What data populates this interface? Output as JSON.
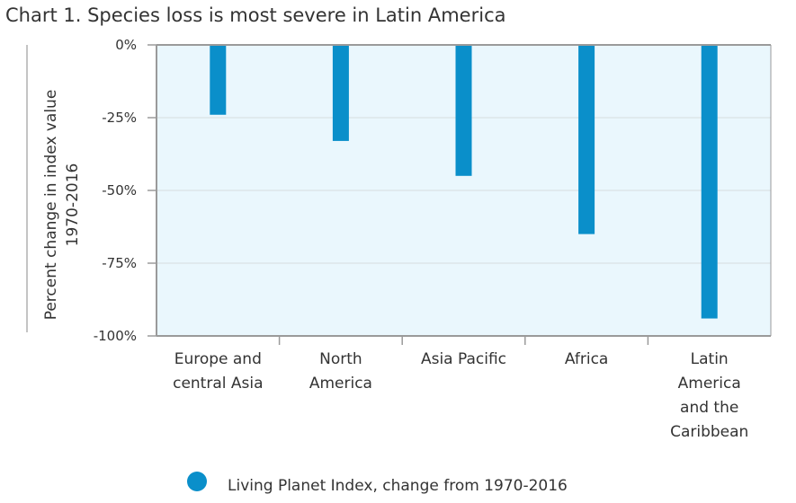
{
  "chart_data": {
    "type": "bar",
    "title": "Chart 1. Species loss is most severe in Latin America",
    "ylabel_lines": [
      "Percent change in index value",
      "1970-2016"
    ],
    "categories": [
      [
        "Europe and",
        "central Asia"
      ],
      [
        "North",
        "America"
      ],
      [
        "Asia Pacific"
      ],
      [
        "Africa"
      ],
      [
        "Latin",
        "America",
        "and the",
        "Caribbean"
      ]
    ],
    "values": [
      -24,
      -33,
      -45,
      -65,
      -94
    ],
    "ylim": [
      -100,
      0
    ],
    "yticks": [
      0,
      -25,
      -50,
      -75,
      -100
    ],
    "ytick_labels": [
      "0%",
      "-25%",
      "-50%",
      "-75%",
      "-100%"
    ],
    "legend": {
      "label": "Living Planet Index, change from 1970-2016",
      "position": "bottom-center"
    },
    "grid": true,
    "colors": {
      "bar": "#0a8fca",
      "plot_bg": "#eaf7fd",
      "axis": "#9a9a9a",
      "grid": "#d5dde0"
    }
  }
}
